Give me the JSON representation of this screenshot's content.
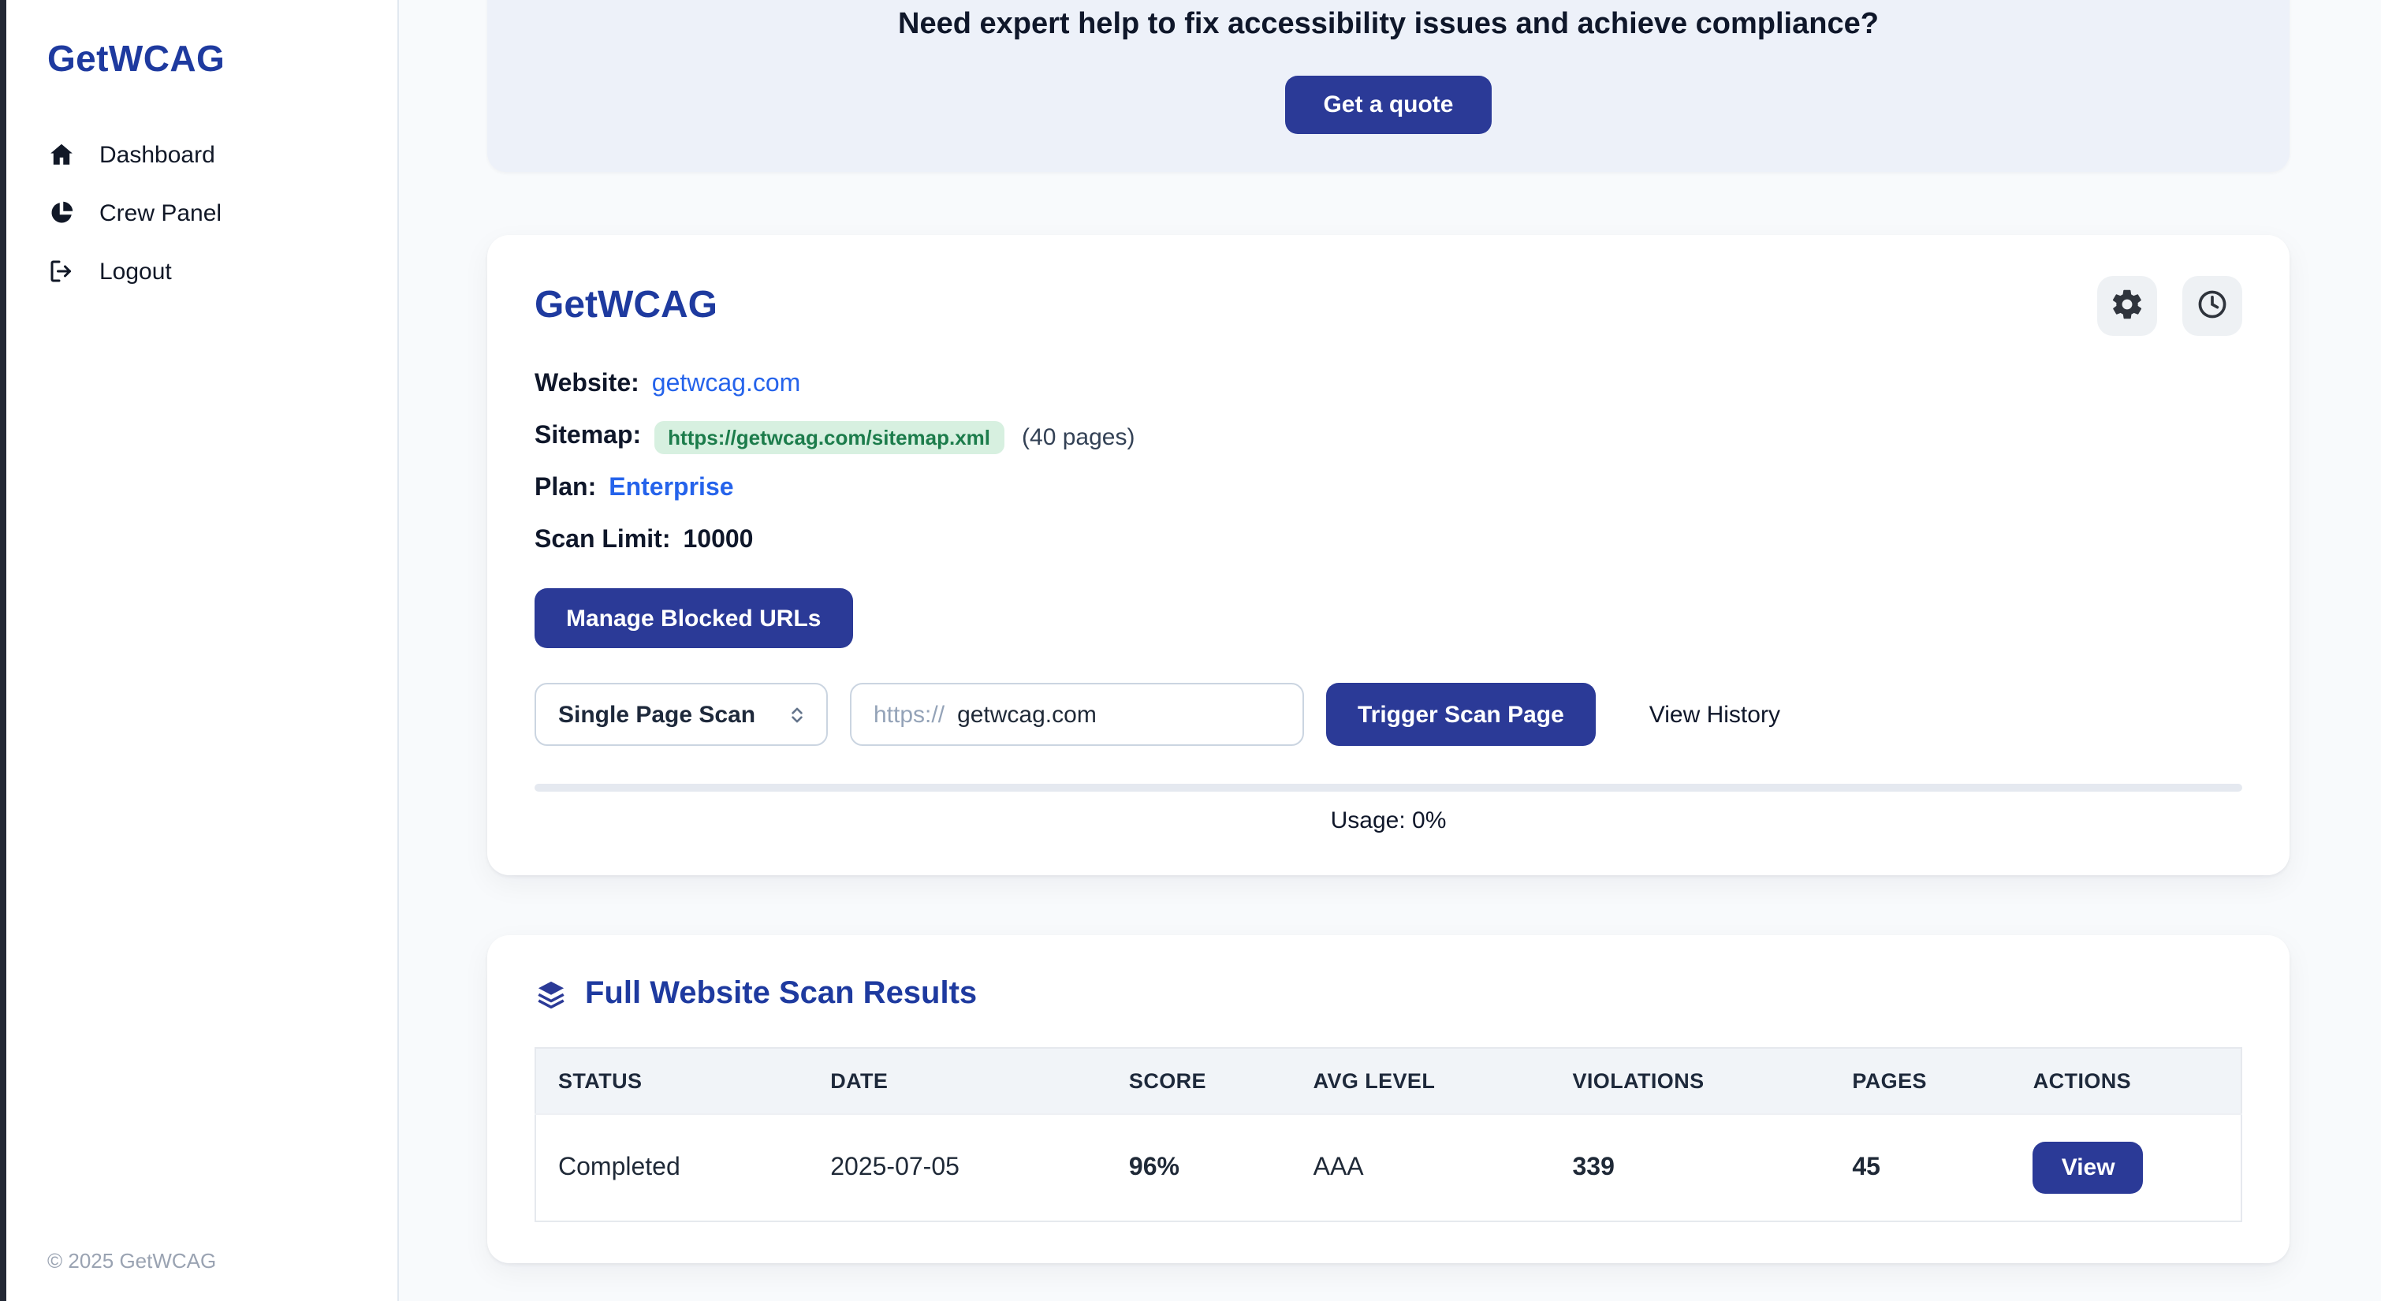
{
  "sidebar": {
    "logo": "GetWCAG",
    "items": [
      {
        "label": "Dashboard",
        "icon": "home-icon"
      },
      {
        "label": "Crew Panel",
        "icon": "pie-chart-icon"
      },
      {
        "label": "Logout",
        "icon": "logout-icon"
      }
    ],
    "footer": "© 2025 GetWCAG"
  },
  "banner": {
    "text": "Need expert help to fix accessibility issues and achieve compliance?",
    "button": "Get a quote"
  },
  "site_card": {
    "title": "GetWCAG",
    "website_label": "Website:",
    "website_link": "getwcag.com",
    "sitemap_label": "Sitemap:",
    "sitemap_url": "https://getwcag.com/sitemap.xml",
    "sitemap_pages": "(40 pages)",
    "plan_label": "Plan:",
    "plan_value": "Enterprise",
    "scan_limit_label": "Scan Limit:",
    "scan_limit_value": "10000",
    "manage_blocked_button": "Manage Blocked URLs",
    "scan_type_select": "Single Page Scan",
    "url_prefix": "https://",
    "url_value": "getwcag.com",
    "trigger_button": "Trigger Scan Page",
    "view_history_link": "View History",
    "usage_text": "Usage: 0%",
    "usage_percent": 0
  },
  "results_card": {
    "title": "Full Website Scan Results",
    "table": {
      "headers": [
        "STATUS",
        "DATE",
        "SCORE",
        "AVG LEVEL",
        "VIOLATIONS",
        "PAGES",
        "ACTIONS"
      ],
      "rows": [
        {
          "status": "Completed",
          "date": "2025-07-05",
          "score": "96%",
          "avg_level": "AAA",
          "violations": "339",
          "pages": "45",
          "action": "View"
        }
      ]
    }
  },
  "colors": {
    "accent": "#2b3a97",
    "title_blue": "#1e3a9f",
    "link_blue": "#2563eb",
    "success_green": "#22c55e",
    "danger_red": "#ef4444",
    "badge_bg": "#d7f0e0",
    "badge_text": "#1c7c4b"
  }
}
